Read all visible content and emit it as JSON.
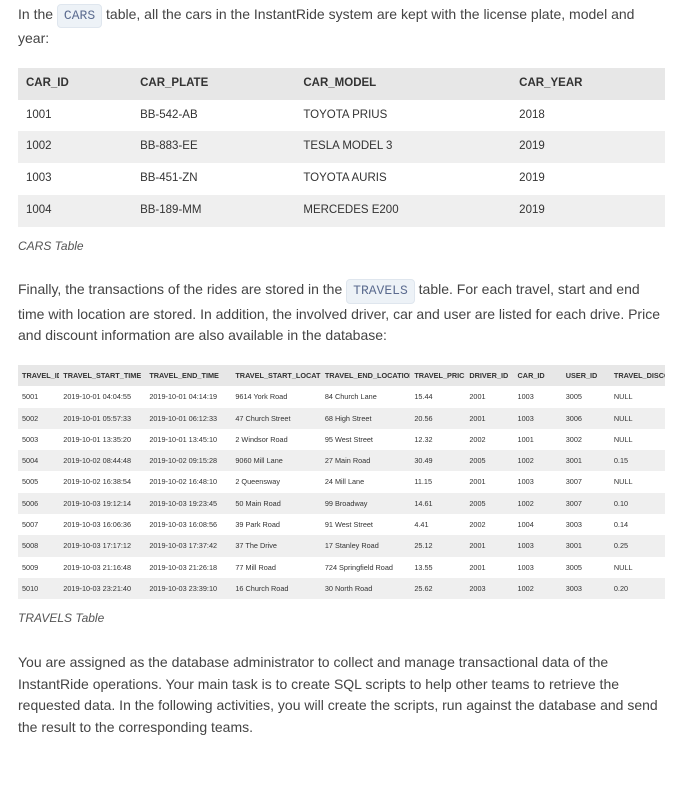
{
  "intro1_a": "In the ",
  "intro1_chip": "CARS",
  "intro1_b": " table, all the cars in the InstantRide system are kept with the license plate, model and year:",
  "cars": {
    "headers": [
      "CAR_ID",
      "CAR_PLATE",
      "CAR_MODEL",
      "CAR_YEAR"
    ],
    "rows": [
      [
        "1001",
        "BB-542-AB",
        "TOYOTA PRIUS",
        "2018"
      ],
      [
        "1002",
        "BB-883-EE",
        "TESLA MODEL 3",
        "2019"
      ],
      [
        "1003",
        "BB-451-ZN",
        "TOYOTA AURIS",
        "2019"
      ],
      [
        "1004",
        "BB-189-MM",
        "MERCEDES E200",
        "2019"
      ]
    ],
    "caption": "CARS Table"
  },
  "intro2_a": "Finally, the transactions of the rides are stored in the ",
  "intro2_chip": "TRAVELS",
  "intro2_b": " table. For each travel, start and end time with location are stored. In addition, the involved driver, car and user are listed for each drive. Price and discount information are also available in the database:",
  "travels": {
    "headers": [
      "TRAVEL_ID",
      "TRAVEL_START_TIME",
      "TRAVEL_END_TIME",
      "TRAVEL_START_LOCATION",
      "TRAVEL_END_LOCATION",
      "TRAVEL_PRICE",
      "DRIVER_ID",
      "CAR_ID",
      "USER_ID",
      "TRAVEL_DISCOUNT"
    ],
    "rows": [
      [
        "5001",
        "2019-10-01 04:04:55",
        "2019-10-01 04:14:19",
        "9614 York Road",
        "84 Church Lane",
        "15.44",
        "2001",
        "1003",
        "3005",
        "NULL"
      ],
      [
        "5002",
        "2019-10-01 05:57:33",
        "2019-10-01 06:12:33",
        "47 Church Street",
        "68 High Street",
        "20.56",
        "2001",
        "1003",
        "3006",
        "NULL"
      ],
      [
        "5003",
        "2019-10-01 13:35:20",
        "2019-10-01 13:45:10",
        "2 Windsor Road",
        "95 West Street",
        "12.32",
        "2002",
        "1001",
        "3002",
        "NULL"
      ],
      [
        "5004",
        "2019-10-02 08:44:48",
        "2019-10-02 09:15:28",
        "9060 Mill Lane",
        "27 Main Road",
        "30.49",
        "2005",
        "1002",
        "3001",
        "0.15"
      ],
      [
        "5005",
        "2019-10-02 16:38:54",
        "2019-10-02 16:48:10",
        "2 Queensway",
        "24 Mill Lane",
        "11.15",
        "2001",
        "1003",
        "3007",
        "NULL"
      ],
      [
        "5006",
        "2019-10-03 19:12:14",
        "2019-10-03 19:23:45",
        "50 Main Road",
        "99 Broadway",
        "14.61",
        "2005",
        "1002",
        "3007",
        "0.10"
      ],
      [
        "5007",
        "2019-10-03 16:06:36",
        "2019-10-03 16:08:56",
        "39 Park Road",
        "91 West Street",
        "4.41",
        "2002",
        "1004",
        "3003",
        "0.14"
      ],
      [
        "5008",
        "2019-10-03 17:17:12",
        "2019-10-03 17:37:42",
        "37 The Drive",
        "17 Stanley Road",
        "25.12",
        "2001",
        "1003",
        "3001",
        "0.25"
      ],
      [
        "5009",
        "2019-10-03 21:16:48",
        "2019-10-03 21:26:18",
        "77 Mill Road",
        "724 Springfield Road",
        "13.55",
        "2001",
        "1003",
        "3005",
        "NULL"
      ],
      [
        "5010",
        "2019-10-03 23:21:40",
        "2019-10-03 23:39:10",
        "16 Church Road",
        "30 North Road",
        "25.62",
        "2003",
        "1002",
        "3003",
        "0.20"
      ]
    ],
    "caption": "TRAVELS Table"
  },
  "assignment": "You are assigned as the database administrator to collect and manage transactional data of the InstantRide operations. Your main task is to create SQL scripts to help other teams to retrieve the requested data. In the following activities, you will create the scripts, run against the database and send the result to the corresponding teams."
}
